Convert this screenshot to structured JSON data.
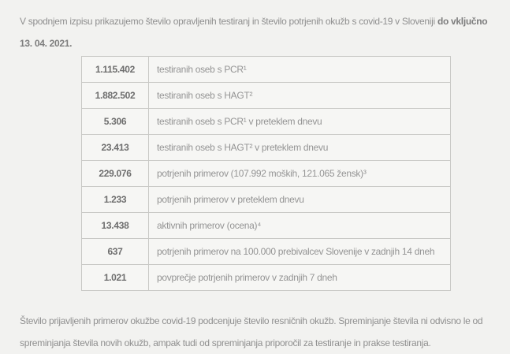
{
  "page": {
    "background": "#f2f2f0",
    "table_border_color": "#c9c9c6",
    "cell_background": "#f6f6f4",
    "text_color": "#8f8f8f",
    "value_color": "#6e6e6e"
  },
  "intro": {
    "line1_regular": "V spodnjem izpisu prikazujemo število opravljenih testiranj in število potrjenih okužb s covid-19 v Sloveniji ",
    "line1_bold": "do vključno",
    "line2_bold": "13. 04. 2021."
  },
  "table": {
    "rows": [
      {
        "value": "1.115.402",
        "label": "testiranih oseb s PCR¹"
      },
      {
        "value": "1.882.502",
        "label": "testiranih oseb s HAGT²"
      },
      {
        "value": "5.306",
        "label": "testiranih oseb s PCR¹ v preteklem dnevu"
      },
      {
        "value": "23.413",
        "label": "testiranih oseb s HAGT² v preteklem dnevu"
      },
      {
        "value": "229.076",
        "label": "potrjenih primerov (107.992 moških, 121.065 žensk)³"
      },
      {
        "value": "1.233",
        "label": "potrjenih primerov v preteklem dnevu"
      },
      {
        "value": "13.438",
        "label": "aktivnih primerov (ocena)⁴"
      },
      {
        "value": "637",
        "label": "potrjenih primerov na 100.000 prebivalcev Slovenije v zadnjih 14 dneh"
      },
      {
        "value": "1.021",
        "label": "povprečje potrjenih primerov v zadnjih 7 dneh"
      }
    ]
  },
  "footer": {
    "line1": "Število prijavljenih primerov okužbe covid-19 podcenjuje število resničnih okužb. Spreminjanje števila ni odvisno le od",
    "line2": "spreminjanja števila novih okužb, ampak tudi od spreminjanja priporočil za testiranje in prakse testiranja."
  }
}
